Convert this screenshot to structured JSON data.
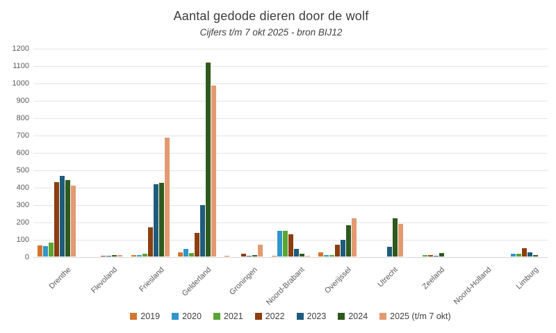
{
  "header": {
    "title": "Aantal gedode dieren door de wolf",
    "subtitle": "Cijfers t/m 7 okt 2025 - bron BIJ12"
  },
  "chart_data": {
    "type": "bar",
    "title": "Aantal gedode dieren door de wolf",
    "subtitle": "Cijfers t/m 7 okt 2025 - bron BIJ12",
    "categories": [
      "Drenthe",
      "Flevoland",
      "Friesland",
      "Gelderland",
      "Groningen",
      "Noord-Brabant",
      "Overijssel",
      "Utrecht",
      "Zeeland",
      "Noord-Holland",
      "Limburg"
    ],
    "series": [
      {
        "name": "2019",
        "color": "#d3752f",
        "values": [
          65,
          0,
          10,
          25,
          3,
          5,
          25,
          0,
          0,
          0,
          0
        ]
      },
      {
        "name": "2020",
        "color": "#3096c9",
        "values": [
          60,
          0,
          10,
          45,
          0,
          150,
          10,
          0,
          0,
          0,
          15
        ]
      },
      {
        "name": "2021",
        "color": "#5aa534",
        "values": [
          80,
          0,
          15,
          20,
          0,
          150,
          8,
          0,
          10,
          0,
          15
        ]
      },
      {
        "name": "2022",
        "color": "#8b3e0f",
        "values": [
          430,
          5,
          170,
          135,
          15,
          130,
          70,
          0,
          10,
          0,
          50
        ]
      },
      {
        "name": "2023",
        "color": "#1f5c7c",
        "values": [
          465,
          2,
          415,
          295,
          2,
          45,
          95,
          55,
          3,
          0,
          25
        ]
      },
      {
        "name": "2024",
        "color": "#2f5a1d",
        "values": [
          440,
          10,
          425,
          1115,
          10,
          15,
          180,
          220,
          20,
          0,
          8
        ]
      },
      {
        "name": "2025 (t/m 7 okt)",
        "color": "#e39a71",
        "values": [
          410,
          10,
          685,
          985,
          70,
          5,
          220,
          190,
          0,
          0,
          0
        ]
      }
    ],
    "ylim": [
      0,
      1200
    ],
    "ytick_step": 100,
    "grid": true,
    "legend_position": "bottom",
    "xlabel": "",
    "ylabel": ""
  }
}
